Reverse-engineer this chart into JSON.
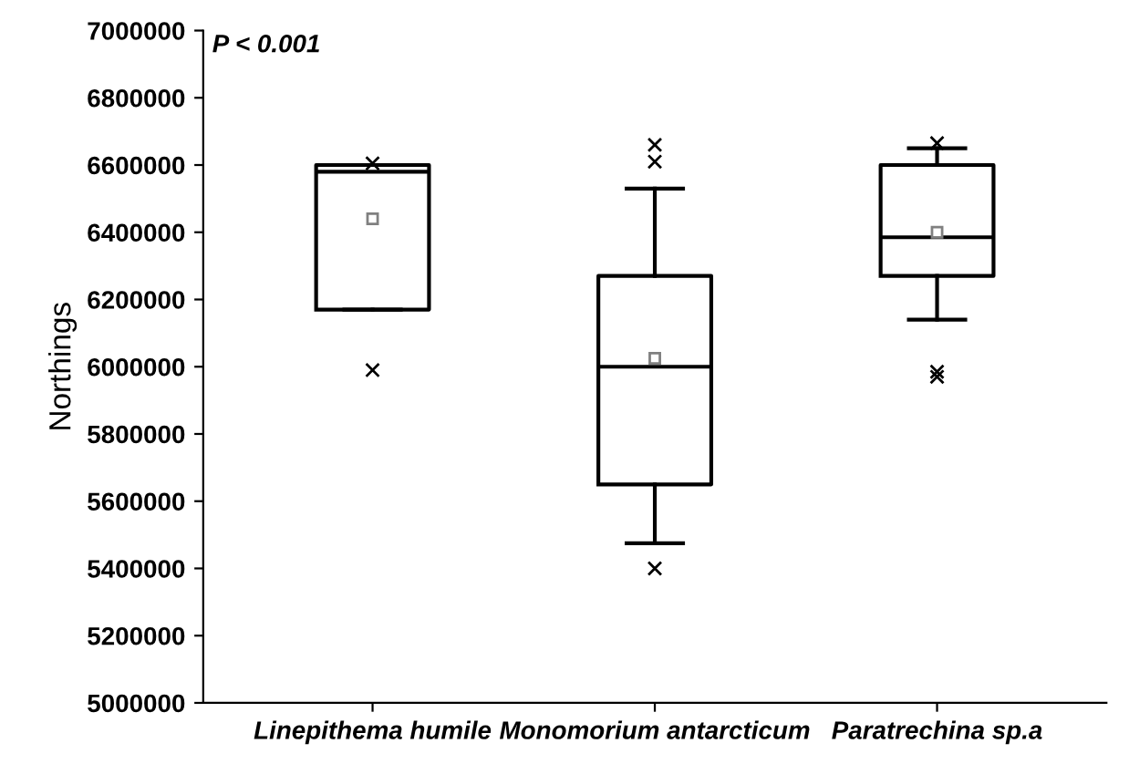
{
  "chart_data": {
    "type": "box",
    "categories": [
      "Linepithema humile",
      "Monomorium antarcticum",
      "Paratrechina sp.a"
    ],
    "ylabel": "Northings",
    "annotations": [
      "P < 0.001"
    ],
    "ylim": [
      5000000,
      7000000
    ],
    "yticks": [
      5000000,
      5200000,
      5400000,
      5600000,
      5800000,
      6000000,
      6200000,
      6400000,
      6600000,
      6800000,
      7000000
    ],
    "boxes": [
      {
        "low": 6170000,
        "q1": 6170000,
        "median": 6580000,
        "q3": 6600000,
        "high": 6600000,
        "mean": 6440000,
        "outliers": [
          6605000,
          5990000
        ]
      },
      {
        "low": 5475000,
        "q1": 5650000,
        "median": 6000000,
        "q3": 6270000,
        "high": 6530000,
        "mean": 6025000,
        "outliers": [
          6660000,
          6610000,
          5400000
        ]
      },
      {
        "low": 6140000,
        "q1": 6270000,
        "median": 6385000,
        "q3": 6600000,
        "high": 6650000,
        "mean": 6400000,
        "outliers": [
          6665000,
          5985000,
          5970000
        ]
      }
    ],
    "grid": false,
    "legend": false
  }
}
